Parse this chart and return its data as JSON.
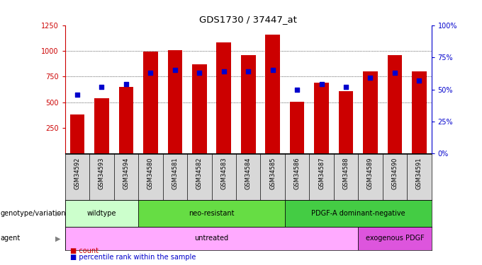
{
  "title": "GDS1730 / 37447_at",
  "samples": [
    "GSM34592",
    "GSM34593",
    "GSM34594",
    "GSM34580",
    "GSM34581",
    "GSM34582",
    "GSM34583",
    "GSM34584",
    "GSM34585",
    "GSM34586",
    "GSM34587",
    "GSM34588",
    "GSM34589",
    "GSM34590",
    "GSM34591"
  ],
  "counts": [
    380,
    540,
    650,
    990,
    1005,
    870,
    1080,
    960,
    1160,
    505,
    690,
    610,
    800,
    960,
    800
  ],
  "percentiles": [
    46,
    52,
    54,
    63,
    65,
    63,
    64,
    64,
    65,
    50,
    54,
    52,
    59,
    63,
    57
  ],
  "ylim_left": [
    0,
    1250
  ],
  "ylim_right": [
    0,
    100
  ],
  "yticks_left": [
    250,
    500,
    750,
    1000,
    1250
  ],
  "yticks_right": [
    0,
    25,
    50,
    75,
    100
  ],
  "bar_color": "#cc0000",
  "dot_color": "#0000cc",
  "genotype_groups": [
    {
      "label": "wildtype",
      "start": 0,
      "end": 3,
      "color": "#ccffcc"
    },
    {
      "label": "neo-resistant",
      "start": 3,
      "end": 9,
      "color": "#66dd44"
    },
    {
      "label": "PDGF-A dominant-negative",
      "start": 9,
      "end": 15,
      "color": "#44cc44"
    }
  ],
  "agent_groups": [
    {
      "label": "untreated",
      "start": 0,
      "end": 12,
      "color": "#ffaaff"
    },
    {
      "label": "exogenous PDGF",
      "start": 12,
      "end": 15,
      "color": "#dd55dd"
    }
  ],
  "left_label_color": "#cc0000",
  "right_label_color": "#0000cc",
  "sample_bg_color": "#d8d8d8"
}
